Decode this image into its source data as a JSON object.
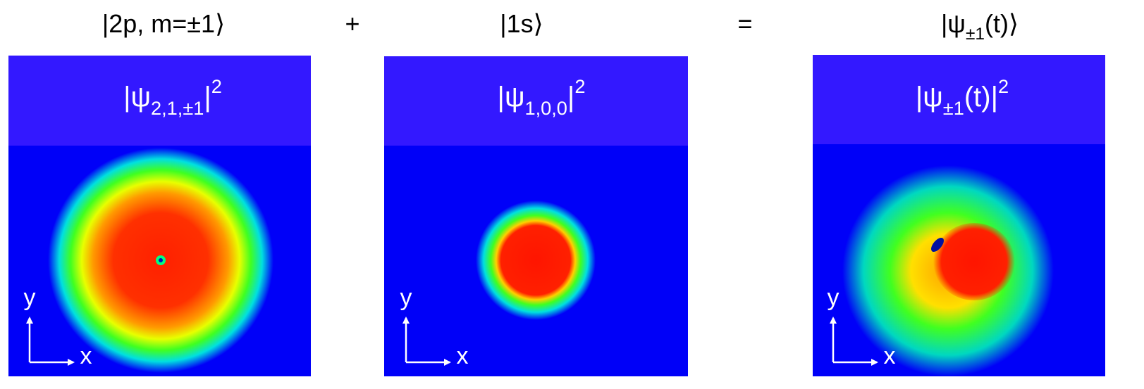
{
  "labels": [
    {
      "parts": [
        {
          "text": "|2p, m=±1⟩"
        }
      ]
    },
    {
      "parts": [
        {
          "text": "+"
        }
      ]
    },
    {
      "parts": [
        {
          "text": "|1s⟩"
        }
      ]
    },
    {
      "parts": [
        {
          "text": "="
        }
      ]
    },
    {
      "parts": [
        {
          "text": "|ψ"
        },
        {
          "sub": "±1"
        },
        {
          "text": "(t)⟩"
        }
      ]
    }
  ],
  "panels": [
    {
      "title": [
        {
          "text": "|ψ"
        },
        {
          "sub": "2,1,±1"
        },
        {
          "text": "|"
        },
        {
          "sup": "2"
        }
      ],
      "axis_y": "y",
      "axis_x": "x"
    },
    {
      "title": [
        {
          "text": "|ψ"
        },
        {
          "sub": "1,0,0"
        },
        {
          "text": "|"
        },
        {
          "sup": "2"
        }
      ],
      "axis_y": "y",
      "axis_x": "x"
    },
    {
      "title": [
        {
          "text": "|ψ"
        },
        {
          "sub": "±1"
        },
        {
          "text": "(t)|"
        },
        {
          "sup": "2"
        }
      ],
      "axis_y": "y",
      "axis_x": "x"
    }
  ]
}
